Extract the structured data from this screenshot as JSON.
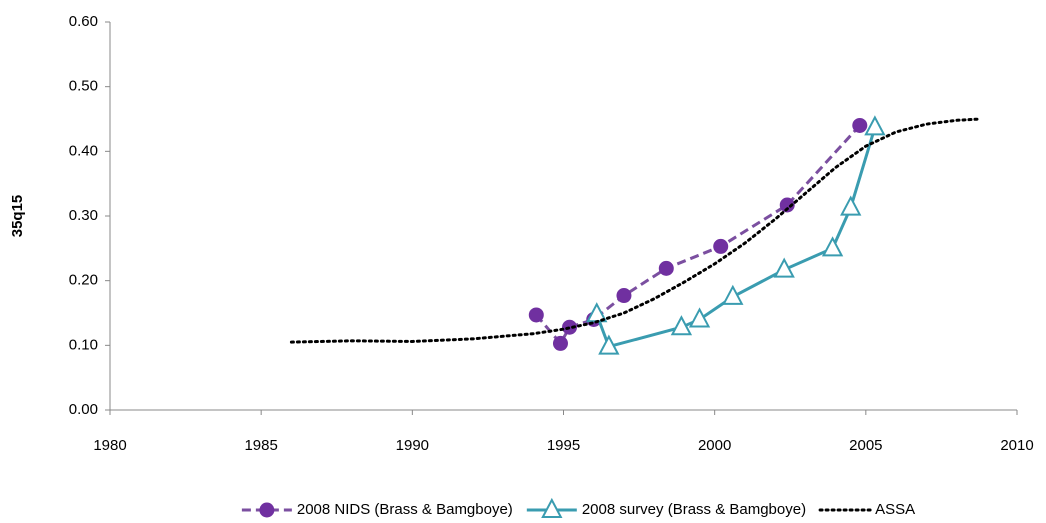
{
  "chart_data": {
    "type": "line",
    "y_label": "35q15",
    "xlim": [
      1980,
      2010
    ],
    "xticks": [
      1980,
      1985,
      1990,
      1995,
      2000,
      2005,
      2010
    ],
    "ylim": [
      0,
      0.6
    ],
    "yticks": [
      {
        "value": 0,
        "label": "0.00"
      },
      {
        "value": 0.1,
        "label": "0.10"
      },
      {
        "value": 0.2,
        "label": "0.20"
      },
      {
        "value": 0.3,
        "label": "0.30"
      },
      {
        "value": 0.4,
        "label": "0.40"
      },
      {
        "value": 0.5,
        "label": "0.50"
      },
      {
        "value": 0.6,
        "label": "0.60"
      }
    ],
    "grid": false,
    "legend": "bottom",
    "series": [
      {
        "name": "2008 NIDS (Brass & Bamgboye)",
        "color": "#7b4fa0",
        "line_style": "dashed",
        "marker": "circle",
        "marker_color": "#7030a0",
        "x": [
          1994.1,
          1994.9,
          1995.2,
          1996.0,
          1997.0,
          1998.4,
          2000.2,
          2002.4,
          2004.8
        ],
        "values": [
          0.147,
          0.103,
          0.128,
          0.14,
          0.177,
          0.219,
          0.253,
          0.317,
          0.44
        ]
      },
      {
        "name": "2008 survey (Brass & Bamgboye)",
        "color": "#3a9cb0",
        "line_style": "solid",
        "marker": "triangle",
        "marker_color": "#3a9cb0",
        "x": [
          1996.1,
          1996.5,
          1998.9,
          1999.5,
          2000.6,
          2002.3,
          2003.9,
          2004.5,
          2005.3
        ],
        "values": [
          0.148,
          0.098,
          0.128,
          0.14,
          0.175,
          0.217,
          0.25,
          0.313,
          0.437
        ]
      },
      {
        "name": "ASSA",
        "color": "#000000",
        "line_style": "dotted",
        "marker": "none",
        "x": [
          1986,
          1988,
          1990,
          1992,
          1994,
          1995,
          1996,
          1997,
          1998,
          1999,
          2000,
          2001,
          2002,
          2003,
          2004,
          2005,
          2006,
          2007,
          2008,
          2008.8
        ],
        "values": [
          0.105,
          0.107,
          0.106,
          0.11,
          0.118,
          0.125,
          0.135,
          0.15,
          0.172,
          0.198,
          0.226,
          0.258,
          0.295,
          0.335,
          0.375,
          0.408,
          0.43,
          0.442,
          0.448,
          0.45
        ]
      }
    ]
  }
}
